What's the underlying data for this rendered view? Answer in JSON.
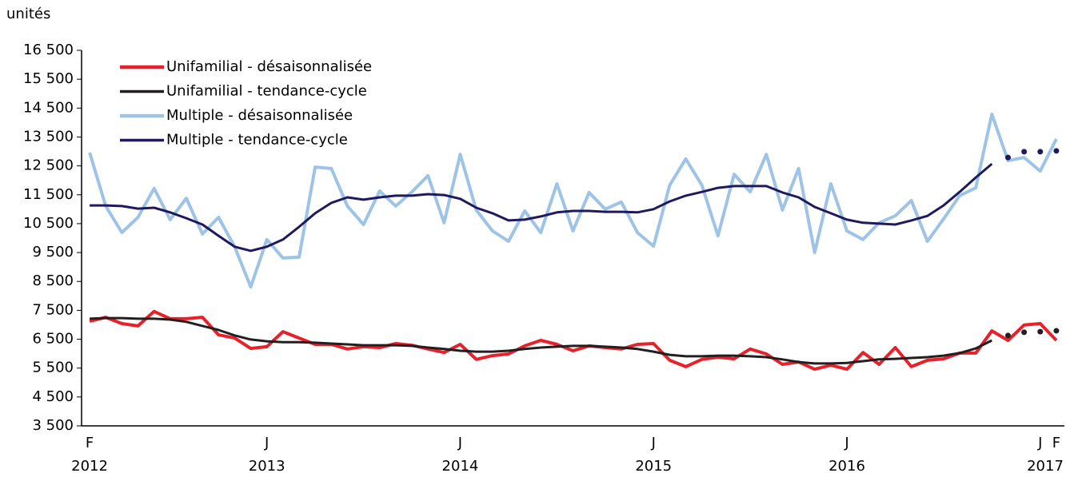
{
  "chart_data": {
    "type": "line",
    "y_label": "unités",
    "categories": [
      "F",
      null,
      null,
      null,
      null,
      null,
      null,
      null,
      null,
      null,
      null,
      "J",
      null,
      null,
      null,
      null,
      null,
      null,
      null,
      null,
      null,
      null,
      null,
      "J",
      null,
      null,
      null,
      null,
      null,
      null,
      null,
      null,
      null,
      null,
      null,
      "J",
      null,
      null,
      null,
      null,
      null,
      null,
      null,
      null,
      null,
      null,
      null,
      "J",
      null,
      null,
      null,
      null,
      null,
      null,
      null,
      null,
      null,
      null,
      null,
      "J",
      "F"
    ],
    "x_years": [
      "2012",
      null,
      null,
      null,
      null,
      null,
      null,
      null,
      null,
      null,
      null,
      "2013",
      null,
      null,
      null,
      null,
      null,
      null,
      null,
      null,
      null,
      null,
      null,
      "2014",
      null,
      null,
      null,
      null,
      null,
      null,
      null,
      null,
      null,
      null,
      null,
      "2015",
      null,
      null,
      null,
      null,
      null,
      null,
      null,
      null,
      null,
      null,
      null,
      "2016",
      null,
      null,
      null,
      null,
      null,
      null,
      null,
      null,
      null,
      null,
      null,
      null,
      "2017"
    ],
    "ylim": [
      3500,
      16500
    ],
    "yticks": [
      {
        "value": 3500,
        "label": "3 500"
      },
      {
        "value": 4500,
        "label": "4 500"
      },
      {
        "value": 5500,
        "label": "5 500"
      },
      {
        "value": 6500,
        "label": "6 500"
      },
      {
        "value": 7500,
        "label": "7 500"
      },
      {
        "value": 8500,
        "label": "8 500"
      },
      {
        "value": 9500,
        "label": "9 500"
      },
      {
        "value": 10500,
        "label": "10 500"
      },
      {
        "value": 11500,
        "label": "11 500"
      },
      {
        "value": 12500,
        "label": "12 500"
      },
      {
        "value": 13500,
        "label": "13 500"
      },
      {
        "value": 14500,
        "label": "14 500"
      },
      {
        "value": 15500,
        "label": "15 500"
      },
      {
        "value": 16500,
        "label": "16 500"
      }
    ],
    "grid": false,
    "legend": "upper-left",
    "series": [
      {
        "name": "Unifamilial - désaisonnalisée",
        "color": "#e8202a",
        "width": 4,
        "values": [
          7120,
          7260,
          7040,
          6960,
          7460,
          7210,
          7210,
          7260,
          6650,
          6540,
          6180,
          6240,
          6760,
          6540,
          6320,
          6320,
          6160,
          6240,
          6210,
          6350,
          6290,
          6160,
          6040,
          6320,
          5800,
          5930,
          5990,
          6270,
          6460,
          6320,
          6100,
          6270,
          6210,
          6160,
          6320,
          6350,
          5770,
          5550,
          5800,
          5880,
          5820,
          6160,
          5990,
          5630,
          5710,
          5460,
          5600,
          5460,
          6040,
          5630,
          6210,
          5550,
          5770,
          5820,
          6020,
          6020,
          6790,
          6460,
          6990,
          7040,
          6460
        ]
      },
      {
        "name": "Unifamilial - tendance-cycle",
        "color": "#231f20",
        "width": 3,
        "values": [
          7210,
          7230,
          7230,
          7210,
          7210,
          7180,
          7100,
          6960,
          6820,
          6630,
          6490,
          6430,
          6400,
          6400,
          6380,
          6350,
          6320,
          6290,
          6290,
          6290,
          6270,
          6210,
          6160,
          6100,
          6070,
          6070,
          6100,
          6160,
          6210,
          6240,
          6270,
          6270,
          6240,
          6210,
          6160,
          6070,
          5960,
          5910,
          5910,
          5930,
          5930,
          5910,
          5880,
          5800,
          5710,
          5660,
          5660,
          5680,
          5740,
          5800,
          5820,
          5850,
          5880,
          5930,
          6020,
          6180,
          6460,
          null,
          null,
          null,
          null
        ],
        "provisional_values": [
          null,
          null,
          null,
          null,
          null,
          null,
          null,
          null,
          null,
          null,
          null,
          null,
          null,
          null,
          null,
          null,
          null,
          null,
          null,
          null,
          null,
          null,
          null,
          null,
          null,
          null,
          null,
          null,
          null,
          null,
          null,
          null,
          null,
          null,
          null,
          null,
          null,
          null,
          null,
          null,
          null,
          null,
          null,
          null,
          null,
          null,
          null,
          null,
          null,
          null,
          null,
          null,
          null,
          null,
          null,
          null,
          null,
          6630,
          6740,
          6760,
          6790
        ]
      },
      {
        "name": "Multiple - désaisonnalisée",
        "color": "#9dc3e6",
        "width": 4,
        "values": [
          12960,
          11110,
          10190,
          10720,
          11720,
          10640,
          11380,
          10140,
          10720,
          9700,
          8310,
          9950,
          9310,
          9340,
          12460,
          12410,
          11110,
          10470,
          11630,
          11110,
          11600,
          12160,
          10530,
          12900,
          10970,
          10250,
          9890,
          10940,
          10190,
          11880,
          10250,
          11580,
          11000,
          11250,
          10190,
          9720,
          11830,
          12740,
          11830,
          10080,
          12210,
          11600,
          12900,
          10970,
          12410,
          9500,
          11880,
          10250,
          9950,
          10530,
          10770,
          11300,
          9890,
          10660,
          11470,
          11740,
          14290,
          12680,
          12790,
          12320,
          13430
        ]
      },
      {
        "name": "Multiple - tendance-cycle",
        "color": "#1f1a5e",
        "width": 3,
        "values": [
          11130,
          11130,
          11110,
          11020,
          11050,
          10890,
          10690,
          10470,
          10080,
          9700,
          9560,
          9700,
          9950,
          10390,
          10860,
          11220,
          11410,
          11330,
          11410,
          11470,
          11470,
          11520,
          11490,
          11360,
          11050,
          10860,
          10610,
          10640,
          10750,
          10890,
          10940,
          10940,
          10910,
          10910,
          10890,
          11000,
          11270,
          11470,
          11600,
          11740,
          11800,
          11800,
          11800,
          11580,
          11410,
          11080,
          10860,
          10640,
          10530,
          10500,
          10470,
          10610,
          10770,
          11130,
          11600,
          12100,
          12570,
          null,
          null,
          null,
          null
        ],
        "provisional_values": [
          null,
          null,
          null,
          null,
          null,
          null,
          null,
          null,
          null,
          null,
          null,
          null,
          null,
          null,
          null,
          null,
          null,
          null,
          null,
          null,
          null,
          null,
          null,
          null,
          null,
          null,
          null,
          null,
          null,
          null,
          null,
          null,
          null,
          null,
          null,
          null,
          null,
          null,
          null,
          null,
          null,
          null,
          null,
          null,
          null,
          null,
          null,
          null,
          null,
          null,
          null,
          null,
          null,
          null,
          null,
          null,
          null,
          12790,
          12990,
          12990,
          13020
        ]
      }
    ]
  }
}
